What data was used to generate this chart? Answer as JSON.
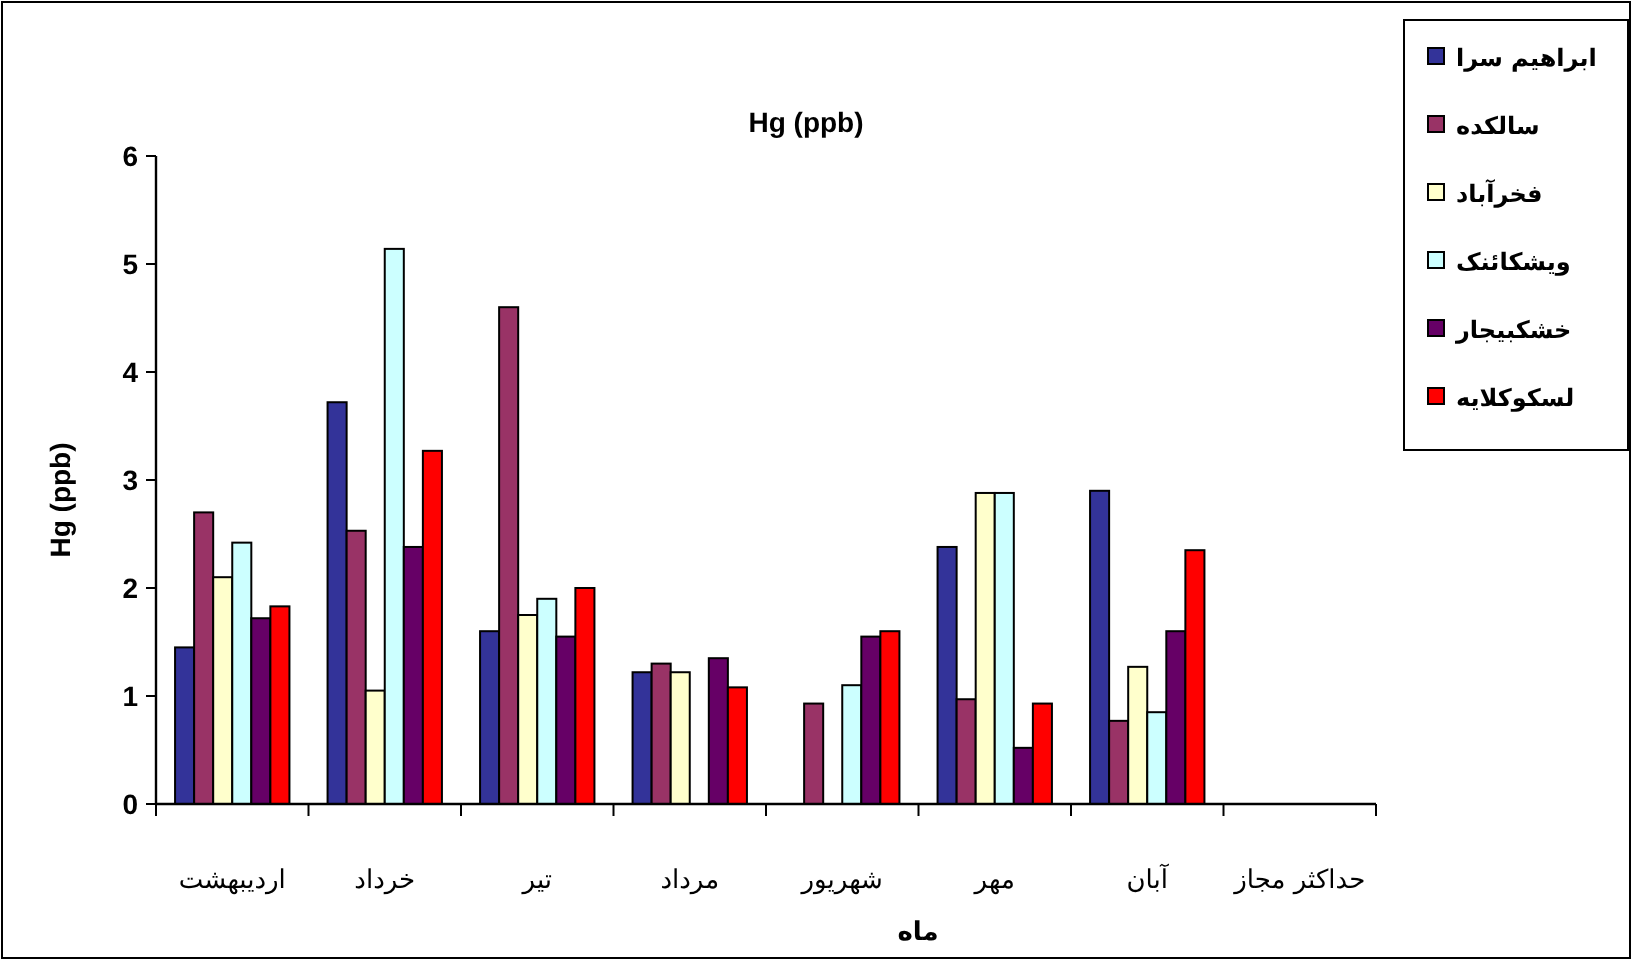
{
  "chart_data": {
    "type": "bar",
    "title": "Hg (ppb)",
    "xlabel": "ماه",
    "ylabel": "Hg (ppb)",
    "categories": [
      "اردیبهشت",
      "خرداد",
      "تیر",
      "مرداد",
      "شهریور",
      "مهر",
      "آبان",
      "حداکثر مجاز"
    ],
    "series": [
      {
        "name": "ابراهیم سرا",
        "color": "#333399",
        "values": [
          1.45,
          3.72,
          1.6,
          1.22,
          null,
          2.38,
          2.9,
          null
        ]
      },
      {
        "name": "سالکده",
        "color": "#993366",
        "values": [
          2.7,
          2.53,
          4.6,
          1.3,
          0.93,
          0.97,
          0.77,
          null
        ]
      },
      {
        "name": "فخرآباد",
        "color": "#ffffcc",
        "values": [
          2.1,
          1.05,
          1.75,
          1.22,
          null,
          2.88,
          1.27,
          null
        ]
      },
      {
        "name": "ویشکائنک",
        "color": "#ccffff",
        "values": [
          2.42,
          5.14,
          1.9,
          null,
          1.1,
          2.88,
          0.85,
          null
        ]
      },
      {
        "name": "خشکبیجار",
        "color": "#660066",
        "values": [
          1.72,
          2.38,
          1.55,
          1.35,
          1.55,
          0.52,
          1.6,
          null
        ]
      },
      {
        "name": "لسکوکلایه",
        "color": "#ff0000",
        "values": [
          1.83,
          3.27,
          2.0,
          1.08,
          1.6,
          0.93,
          2.35,
          null
        ]
      }
    ],
    "ylim": [
      0,
      6
    ],
    "yticks": [
      0,
      1,
      2,
      3,
      4,
      5,
      6
    ],
    "grid": false,
    "legend": "top right"
  }
}
